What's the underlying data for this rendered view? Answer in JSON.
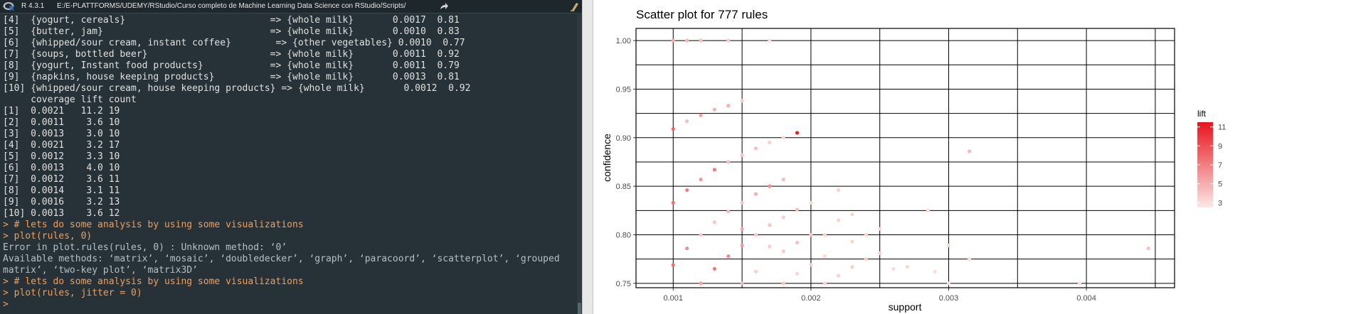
{
  "console": {
    "header": {
      "r_version": "R 4.3.1",
      "path": "E:/E-PLATTFORMS/UDEMY/RStudio/Curso completo de Machine Learning Data Science con RStudio/Scripts/"
    },
    "lines": [
      {
        "type": "out",
        "text": "[4]  {yogurt, cereals}                          => {whole milk}       0.0017  0.81"
      },
      {
        "type": "out",
        "text": "[5]  {butter, jam}                              => {whole milk}       0.0010  0.83"
      },
      {
        "type": "out",
        "text": "[6]  {whipped/sour cream, instant coffee}        => {other vegetables} 0.0010  0.77"
      },
      {
        "type": "out",
        "text": "[7]  {soups, bottled beer}                      => {whole milk}       0.0011  0.92"
      },
      {
        "type": "out",
        "text": "[8]  {yogurt, Instant food products}            => {whole milk}       0.0011  0.79"
      },
      {
        "type": "out",
        "text": "[9]  {napkins, house keeping products}          => {whole milk}       0.0013  0.81"
      },
      {
        "type": "out",
        "text": "[10] {whipped/sour cream, house keeping products} => {whole milk}       0.0012  0.92"
      },
      {
        "type": "out",
        "text": "     coverage lift count"
      },
      {
        "type": "out",
        "text": "[1]  0.0021   11.2 19"
      },
      {
        "type": "out",
        "text": "[2]  0.0011    3.6 10"
      },
      {
        "type": "out",
        "text": "[3]  0.0013    3.0 10"
      },
      {
        "type": "out",
        "text": "[4]  0.0021    3.2 17"
      },
      {
        "type": "out",
        "text": "[5]  0.0012    3.3 10"
      },
      {
        "type": "out",
        "text": "[6]  0.0013    4.0 10"
      },
      {
        "type": "out",
        "text": "[7]  0.0012    3.6 11"
      },
      {
        "type": "out",
        "text": "[8]  0.0014    3.1 11"
      },
      {
        "type": "out",
        "text": "[9]  0.0016    3.2 13"
      },
      {
        "type": "out",
        "text": "[10] 0.0013    3.6 12"
      },
      {
        "type": "cmd",
        "text": "> # lets do some analysis by using some visualizations"
      },
      {
        "type": "cmd",
        "text": "> plot(rules, 0)"
      },
      {
        "type": "err",
        "text": "Error in plot.rules(rules, 0) : Unknown method: ‘0’"
      },
      {
        "type": "err",
        "text": "Available methods: ‘matrix’, ‘mosaic’, ‘doubledecker’, ‘graph’, ‘paracoord’, ‘scatterplot’, ‘grouped"
      },
      {
        "type": "err",
        "text": "matrix’, ‘two-key plot’, ‘matrix3D’"
      },
      {
        "type": "cmd",
        "text": "> # lets do some analysis by using some visualizations"
      },
      {
        "type": "cmd",
        "text": "> plot(rules, jitter = 0)"
      },
      {
        "type": "cmd",
        "text": ">"
      }
    ]
  },
  "chart_data": {
    "type": "scatter",
    "title": "Scatter plot for 777 rules",
    "xlabel": "support",
    "ylabel": "confidence",
    "xlim": [
      0.00073,
      0.00464
    ],
    "ylim": [
      0.7455,
      1.0125
    ],
    "x_ticks": [
      0.001,
      0.002,
      0.003,
      0.004
    ],
    "x_tick_labels": [
      "0.001",
      "0.002",
      "0.003",
      "0.004"
    ],
    "y_ticks": [
      0.75,
      0.8,
      0.85,
      0.9,
      0.95,
      1.0
    ],
    "y_tick_labels": [
      "0.75",
      "0.80",
      "0.85",
      "0.90",
      "0.95",
      "1.00"
    ],
    "grid": true,
    "color_scale": {
      "label": "lift",
      "min": 2.5,
      "max": 11.5,
      "low_color": "#fbe8e6",
      "high_color": "#e8141c",
      "ticks": [
        3,
        5,
        7,
        9,
        11
      ],
      "tick_labels": [
        "3",
        "5",
        "7",
        "9",
        "11"
      ]
    },
    "legend": "right",
    "points": [
      {
        "x": 0.001,
        "y": 1.0,
        "lift": 5.2
      },
      {
        "x": 0.0011,
        "y": 1.0,
        "lift": 4.6
      },
      {
        "x": 0.0012,
        "y": 1.0,
        "lift": 4.4
      },
      {
        "x": 0.0014,
        "y": 1.0,
        "lift": 3.8
      },
      {
        "x": 0.0017,
        "y": 1.0,
        "lift": 3.2
      },
      {
        "x": 0.0015,
        "y": 0.938,
        "lift": 3.6
      },
      {
        "x": 0.0014,
        "y": 0.933,
        "lift": 5.0
      },
      {
        "x": 0.0013,
        "y": 0.929,
        "lift": 4.8
      },
      {
        "x": 0.0012,
        "y": 0.923,
        "lift": 5.4
      },
      {
        "x": 0.0011,
        "y": 0.917,
        "lift": 4.2
      },
      {
        "x": 0.001,
        "y": 0.909,
        "lift": 8.1
      },
      {
        "x": 0.0019,
        "y": 0.905,
        "lift": 11.2
      },
      {
        "x": 0.0018,
        "y": 0.9,
        "lift": 3.2
      },
      {
        "x": 0.0017,
        "y": 0.895,
        "lift": 3.5
      },
      {
        "x": 0.0016,
        "y": 0.889,
        "lift": 4.2
      },
      {
        "x": 0.0015,
        "y": 0.882,
        "lift": 4.0
      },
      {
        "x": 0.00315,
        "y": 0.886,
        "lift": 4.6
      },
      {
        "x": 0.0014,
        "y": 0.875,
        "lift": 4.5
      },
      {
        "x": 0.0013,
        "y": 0.867,
        "lift": 7.2
      },
      {
        "x": 0.0018,
        "y": 0.857,
        "lift": 4.3
      },
      {
        "x": 0.0012,
        "y": 0.857,
        "lift": 6.0
      },
      {
        "x": 0.0011,
        "y": 0.846,
        "lift": 7.0
      },
      {
        "x": 0.0017,
        "y": 0.85,
        "lift": 6.4
      },
      {
        "x": 0.0016,
        "y": 0.842,
        "lift": 4.9
      },
      {
        "x": 0.0022,
        "y": 0.846,
        "lift": 3.4
      },
      {
        "x": 0.0015,
        "y": 0.833,
        "lift": 4.0
      },
      {
        "x": 0.001,
        "y": 0.833,
        "lift": 7.4
      },
      {
        "x": 0.0014,
        "y": 0.824,
        "lift": 4.3
      },
      {
        "x": 0.0019,
        "y": 0.826,
        "lift": 4.2
      },
      {
        "x": 0.0023,
        "y": 0.821,
        "lift": 3.3
      },
      {
        "x": 0.00285,
        "y": 0.825,
        "lift": 3.1
      },
      {
        "x": 0.0018,
        "y": 0.818,
        "lift": 3.6
      },
      {
        "x": 0.002,
        "y": 0.833,
        "lift": 3.2
      },
      {
        "x": 0.0013,
        "y": 0.813,
        "lift": 3.8
      },
      {
        "x": 0.0017,
        "y": 0.81,
        "lift": 4.1
      },
      {
        "x": 0.0022,
        "y": 0.815,
        "lift": 3.3
      },
      {
        "x": 0.0015,
        "y": 0.806,
        "lift": 5.3
      },
      {
        "x": 0.0012,
        "y": 0.8,
        "lift": 3.9
      },
      {
        "x": 0.0016,
        "y": 0.8,
        "lift": 3.7
      },
      {
        "x": 0.002,
        "y": 0.8,
        "lift": 4.0
      },
      {
        "x": 0.0021,
        "y": 0.8,
        "lift": 3.4
      },
      {
        "x": 0.0024,
        "y": 0.8,
        "lift": 3.2
      },
      {
        "x": 0.0025,
        "y": 0.806,
        "lift": 3.1
      },
      {
        "x": 0.0019,
        "y": 0.792,
        "lift": 4.3
      },
      {
        "x": 0.0023,
        "y": 0.793,
        "lift": 3.4
      },
      {
        "x": 0.0015,
        "y": 0.789,
        "lift": 6.0
      },
      {
        "x": 0.0011,
        "y": 0.786,
        "lift": 6.3
      },
      {
        "x": 0.0017,
        "y": 0.788,
        "lift": 3.6
      },
      {
        "x": 0.003,
        "y": 0.789,
        "lift": 3.1
      },
      {
        "x": 0.0014,
        "y": 0.778,
        "lift": 6.4
      },
      {
        "x": 0.0018,
        "y": 0.783,
        "lift": 3.7
      },
      {
        "x": 0.0021,
        "y": 0.778,
        "lift": 3.2
      },
      {
        "x": 0.0025,
        "y": 0.781,
        "lift": 3.5
      },
      {
        "x": 0.0024,
        "y": 0.775,
        "lift": 3.6
      },
      {
        "x": 0.00315,
        "y": 0.775,
        "lift": 3.0
      },
      {
        "x": 0.00445,
        "y": 0.786,
        "lift": 4.2
      },
      {
        "x": 0.001,
        "y": 0.769,
        "lift": 7.5
      },
      {
        "x": 0.0023,
        "y": 0.767,
        "lift": 3.6
      },
      {
        "x": 0.0013,
        "y": 0.765,
        "lift": 7.2
      },
      {
        "x": 0.0016,
        "y": 0.762,
        "lift": 3.5
      },
      {
        "x": 0.002,
        "y": 0.769,
        "lift": 3.5
      },
      {
        "x": 0.0027,
        "y": 0.767,
        "lift": 3.2
      },
      {
        "x": 0.0026,
        "y": 0.765,
        "lift": 3.1
      },
      {
        "x": 0.0029,
        "y": 0.762,
        "lift": 3.0
      },
      {
        "x": 0.0019,
        "y": 0.76,
        "lift": 3.3
      },
      {
        "x": 0.0022,
        "y": 0.758,
        "lift": 3.4
      },
      {
        "x": 0.0012,
        "y": 0.75,
        "lift": 5.6
      },
      {
        "x": 0.0015,
        "y": 0.75,
        "lift": 4.7
      },
      {
        "x": 0.0018,
        "y": 0.75,
        "lift": 4.0
      },
      {
        "x": 0.0021,
        "y": 0.75,
        "lift": 3.3
      },
      {
        "x": 0.003,
        "y": 0.75,
        "lift": 3.0
      },
      {
        "x": 0.00395,
        "y": 0.75,
        "lift": 2.8
      }
    ]
  }
}
